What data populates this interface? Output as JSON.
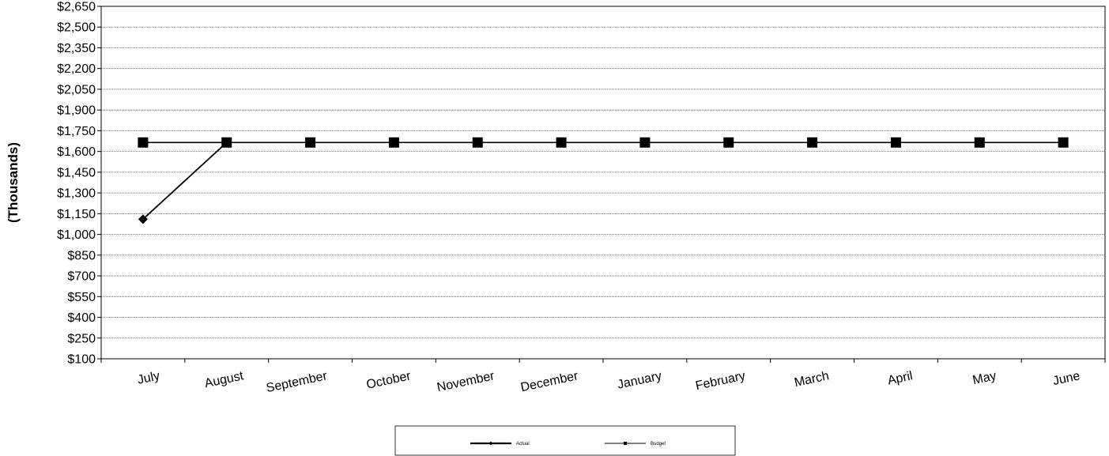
{
  "chart_data": {
    "type": "line",
    "title": "",
    "xlabel": "",
    "ylabel": "(Thousands)",
    "categories": [
      "July",
      "August",
      "September",
      "October",
      "November",
      "December",
      "January",
      "February",
      "March",
      "April",
      "May",
      "June"
    ],
    "yticks": [
      "$100",
      "$250",
      "$400",
      "$550",
      "$700",
      "$850",
      "$1,000",
      "$1,150",
      "$1,300",
      "$1,450",
      "$1,600",
      "$1,750",
      "$1,900",
      "$2,050",
      "$2,200",
      "$2,350",
      "$2,500",
      "$2,650"
    ],
    "ylim": [
      100,
      2650
    ],
    "grid": true,
    "legend_position": "bottom",
    "series": [
      {
        "name": "Actual",
        "marker": "diamond",
        "color": "#000000",
        "values": [
          1110,
          1665,
          null,
          null,
          null,
          null,
          null,
          null,
          null,
          null,
          null,
          null
        ]
      },
      {
        "name": "Budget",
        "marker": "square",
        "color": "#000000",
        "values": [
          1665,
          1665,
          1665,
          1665,
          1665,
          1665,
          1665,
          1665,
          1665,
          1665,
          1665,
          1665
        ]
      }
    ]
  }
}
